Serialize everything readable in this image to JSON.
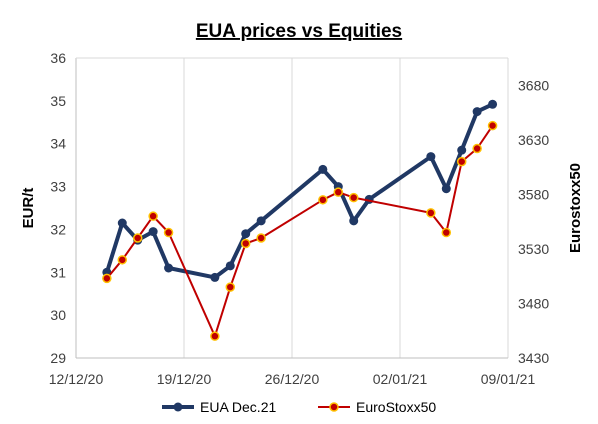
{
  "chart_data": {
    "type": "line",
    "title": "EUA prices vs Equities",
    "xlabel": "",
    "ylabel": "EUR/t",
    "y2label": "Eurostoxx50",
    "xlim": [
      "2020-12-12",
      "2021-01-09"
    ],
    "ylim": [
      29,
      36
    ],
    "y2lim": [
      3430,
      3705
    ],
    "x_ticks": [
      "12/12/20",
      "19/12/20",
      "26/12/20",
      "02/01/21",
      "09/01/21"
    ],
    "x_tick_dates": [
      "2020-12-12",
      "2020-12-19",
      "2020-12-26",
      "2021-01-02",
      "2021-01-09"
    ],
    "y_ticks": [
      29,
      30,
      31,
      32,
      33,
      34,
      35,
      36
    ],
    "y2_ticks": [
      3430,
      3480,
      3530,
      3580,
      3630,
      3680
    ],
    "grid": "vertical",
    "legend_position": "bottom",
    "colors": {
      "eua": "#203864",
      "stoxx": "#c00000",
      "stoxx_marker_fill": "#c00000",
      "stoxx_marker_edge": "#ffc000",
      "grid": "#d9d9d9"
    },
    "series": [
      {
        "name": "EUA Dec.21",
        "axis": "left",
        "x": [
          "2020-12-14",
          "2020-12-15",
          "2020-12-16",
          "2020-12-17",
          "2020-12-18",
          "2020-12-21",
          "2020-12-22",
          "2020-12-23",
          "2020-12-24",
          "2020-12-28",
          "2020-12-29",
          "2020-12-30",
          "2020-12-31",
          "2021-01-04",
          "2021-01-05",
          "2021-01-06",
          "2021-01-07",
          "2021-01-08"
        ],
        "values": [
          31.0,
          32.15,
          31.75,
          31.95,
          31.1,
          30.88,
          31.15,
          31.9,
          32.2,
          33.4,
          33.0,
          32.2,
          32.7,
          33.7,
          32.95,
          33.85,
          34.75,
          34.92
        ]
      },
      {
        "name": "EuroStoxx50",
        "axis": "right",
        "x": [
          "2020-12-14",
          "2020-12-15",
          "2020-12-16",
          "2020-12-17",
          "2020-12-18",
          "2020-12-21",
          "2020-12-22",
          "2020-12-23",
          "2020-12-24",
          "2020-12-28",
          "2020-12-29",
          "2020-12-30",
          "2021-01-04",
          "2021-01-05",
          "2021-01-06",
          "2021-01-07",
          "2021-01-08"
        ],
        "values": [
          3503,
          3520,
          3540,
          3560,
          3545,
          3450,
          3495,
          3535,
          3540,
          3575,
          3582,
          3577,
          3563,
          3545,
          3610,
          3622,
          3643
        ]
      }
    ]
  }
}
